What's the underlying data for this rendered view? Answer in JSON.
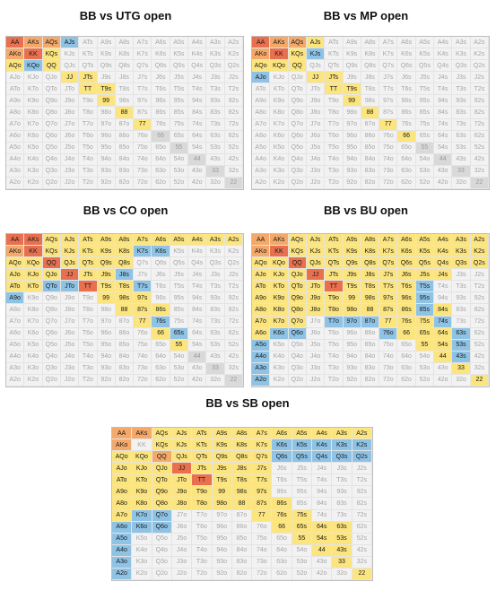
{
  "titles": {
    "utg": "BB vs UTG open",
    "mp": "BB vs MP open",
    "co": "BB vs CO open",
    "bu": "BB vs BU open",
    "sb": "BB vs SB open"
  },
  "ranks": [
    "A",
    "K",
    "Q",
    "J",
    "T",
    "9",
    "8",
    "7",
    "6",
    "5",
    "4",
    "3",
    "2"
  ],
  "legend_colors": {
    "red": "#e8704e",
    "orange": "#f4a96a",
    "yellow": "#fce57e",
    "blue": "#8ec3e6",
    "blue_dark": "#6aaad6",
    "gray": "#d9d9d9",
    "fold": "#f2f2f2"
  },
  "charts": {
    "utg": {
      "red": [
        "AA",
        "KK"
      ],
      "orange": [
        "AKs",
        "AQs",
        "AKo"
      ],
      "blue": [
        "AJs",
        "KQo"
      ],
      "yellow": [
        "KQs",
        "QQ",
        "JJ",
        "JTs",
        "TT",
        "T9s",
        "99",
        "88",
        "77",
        "AQo"
      ],
      "gray": [
        "66",
        "55",
        "44",
        "33",
        "22"
      ]
    },
    "mp": {
      "red": [
        "AA",
        "KK"
      ],
      "orange": [
        "AKs",
        "AQs",
        "AKo"
      ],
      "blue": [
        "KJs",
        "AJo"
      ],
      "yellow": [
        "AJs",
        "KQs",
        "AQo",
        "KQo",
        "QQ",
        "JJ",
        "JTs",
        "TT",
        "T9s",
        "99",
        "88",
        "77",
        "66"
      ],
      "gray": [
        "55",
        "44",
        "33",
        "22"
      ]
    },
    "co": {
      "red": [
        "AA",
        "AKs",
        "KK",
        "QQ",
        "JJ",
        "TT"
      ],
      "orange": [
        "AKo"
      ],
      "blue": [
        "K7s",
        "K6s",
        "J8s",
        "T7s",
        "QTo",
        "JTo",
        "A9o",
        "76s",
        "65s"
      ],
      "yellow": [
        "AQs",
        "AJs",
        "ATs",
        "A9s",
        "A8s",
        "A7s",
        "A6s",
        "A5s",
        "A4s",
        "A3s",
        "A2s",
        "KQs",
        "KJs",
        "KTs",
        "K9s",
        "K8s",
        "QJs",
        "QTs",
        "Q9s",
        "Q8s",
        "JTs",
        "J9s",
        "T9s",
        "T8s",
        "98s",
        "97s",
        "87s",
        "86s",
        "AQo",
        "KQo",
        "AJo",
        "KJo",
        "QJo",
        "ATo",
        "KTo",
        "99",
        "88",
        "77",
        "66",
        "55"
      ],
      "gray": [
        "44",
        "33",
        "22"
      ]
    },
    "bu": {
      "red": [
        "KK",
        "QQ",
        "JJ",
        "TT"
      ],
      "orange": [
        "AA",
        "AKs",
        "AKo"
      ],
      "blue": [
        "T5s",
        "95s",
        "85s",
        "74s",
        "63s",
        "53s",
        "43s",
        "T7o",
        "97o",
        "87o",
        "76o",
        "K6o",
        "Q6o",
        "A5o",
        "A4o",
        "A3o",
        "A2o"
      ],
      "yellow": [
        "AQs",
        "AJs",
        "ATs",
        "A9s",
        "A8s",
        "A7s",
        "A6s",
        "A5s",
        "A4s",
        "A3s",
        "A2s",
        "KQs",
        "KJs",
        "KTs",
        "K9s",
        "K8s",
        "K7s",
        "K6s",
        "K5s",
        "K4s",
        "K3s",
        "K2s",
        "QJs",
        "QTs",
        "Q9s",
        "Q8s",
        "Q7s",
        "Q6s",
        "Q5s",
        "Q4s",
        "Q3s",
        "Q2s",
        "JTs",
        "J9s",
        "J8s",
        "J7s",
        "J6s",
        "J5s",
        "J4s",
        "T9s",
        "T8s",
        "T7s",
        "T6s",
        "98s",
        "97s",
        "96s",
        "87s",
        "86s",
        "84s",
        "76s",
        "75s",
        "65s",
        "64s",
        "54s",
        "44",
        "33",
        "22",
        "99",
        "88",
        "77",
        "66",
        "55",
        "AQo",
        "KQo",
        "AJo",
        "KJo",
        "QJo",
        "ATo",
        "KTo",
        "QTo",
        "JTo",
        "A9o",
        "K9o",
        "Q9o",
        "J9o",
        "T9o",
        "A8o",
        "K8o",
        "Q8o",
        "J8o",
        "T8o",
        "98o",
        "A7o",
        "K7o",
        "Q7o",
        "A6o"
      ],
      "gray": []
    },
    "sb": {
      "red": [
        "JJ",
        "TT"
      ],
      "orange": [
        "AA",
        "AKs",
        "AKo",
        "QQ"
      ],
      "blue": [
        "K6s",
        "K5s",
        "K4s",
        "K3s",
        "K2s",
        "Q6s",
        "Q5s",
        "Q4s",
        "Q3s",
        "Q2s",
        "K7o",
        "Q7o",
        "K6o",
        "Q6o",
        "A6o",
        "A5o",
        "A4o",
        "A3o",
        "A2o"
      ],
      "yellow": [
        "AQs",
        "AJs",
        "ATs",
        "A9s",
        "A8s",
        "A7s",
        "A6s",
        "A5s",
        "A4s",
        "A3s",
        "A2s",
        "KQs",
        "KJs",
        "KTs",
        "K9s",
        "K8s",
        "K7s",
        "QJs",
        "QTs",
        "Q9s",
        "Q8s",
        "Q7s",
        "JTs",
        "J9s",
        "J8s",
        "J7s",
        "T9s",
        "T8s",
        "T7s",
        "98s",
        "97s",
        "87s",
        "86s",
        "76s",
        "75s",
        "65s",
        "64s",
        "54s",
        "53s",
        "43s",
        "63s",
        "33",
        "22",
        "99",
        "88",
        "77",
        "66",
        "55",
        "44",
        "AQo",
        "KQo",
        "AJo",
        "KJo",
        "QJo",
        "ATo",
        "KTo",
        "QTo",
        "JTo",
        "A9o",
        "K9o",
        "Q9o",
        "J9o",
        "T9o",
        "A8o",
        "K8o",
        "Q8o",
        "J8o",
        "T8o",
        "98o",
        "A7o"
      ],
      "gray": []
    }
  }
}
